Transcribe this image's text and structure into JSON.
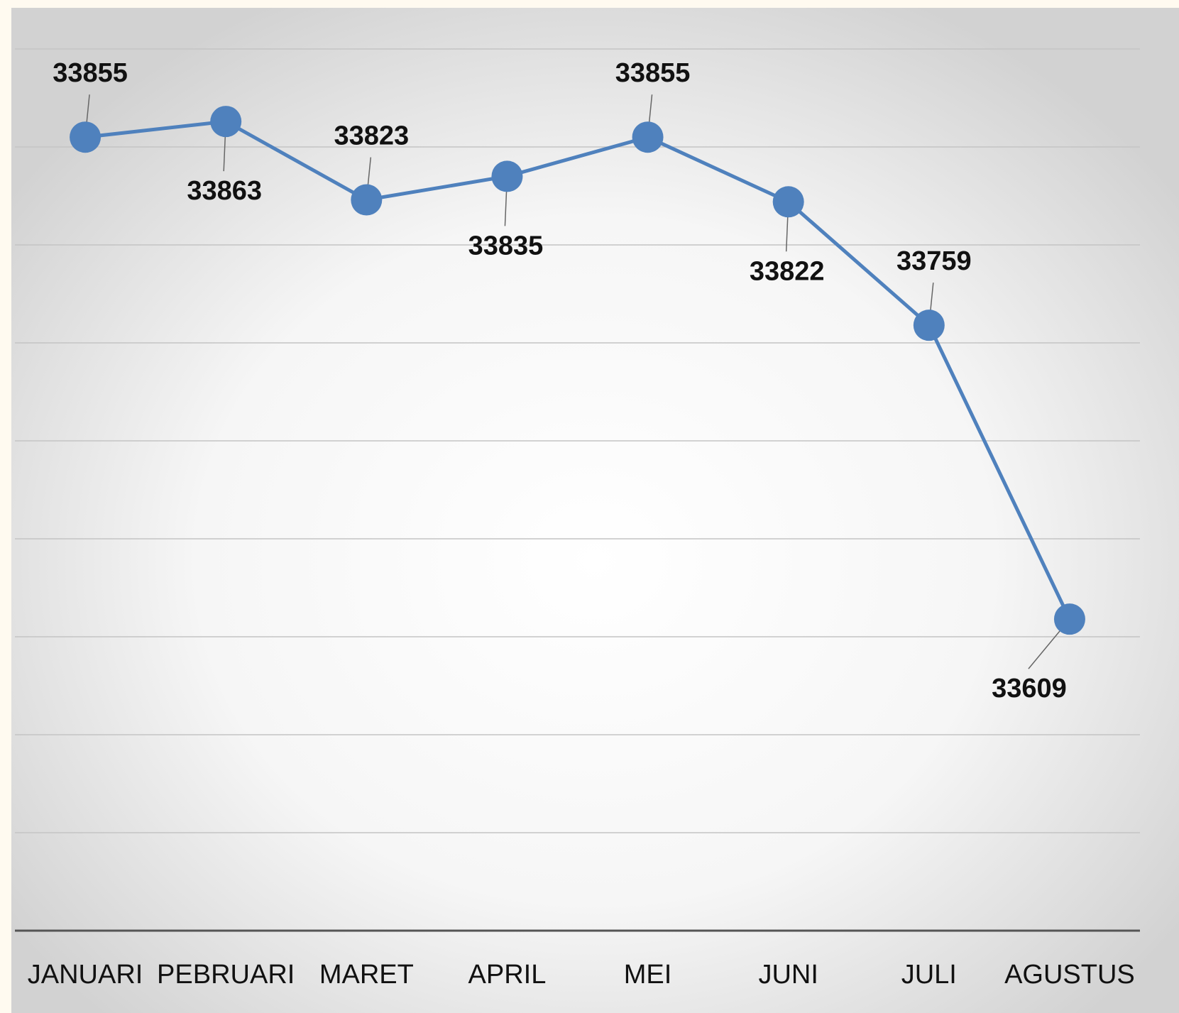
{
  "chart_data": {
    "type": "line",
    "categories": [
      "JANUARI",
      "PEBRUARI",
      "MARET",
      "APRIL",
      "MEI",
      "JUNI",
      "JULI",
      "AGUSTUS"
    ],
    "series": [
      {
        "color": "#4f81bd",
        "values": [
          33855,
          33863,
          33823,
          33835,
          33855,
          33822,
          33759,
          33609
        ]
      }
    ],
    "ylim": [
      33450,
      33900
    ],
    "yticks": [
      33450,
      33500,
      33550,
      33600,
      33650,
      33700,
      33750,
      33800,
      33850,
      33900
    ],
    "grid": true
  }
}
